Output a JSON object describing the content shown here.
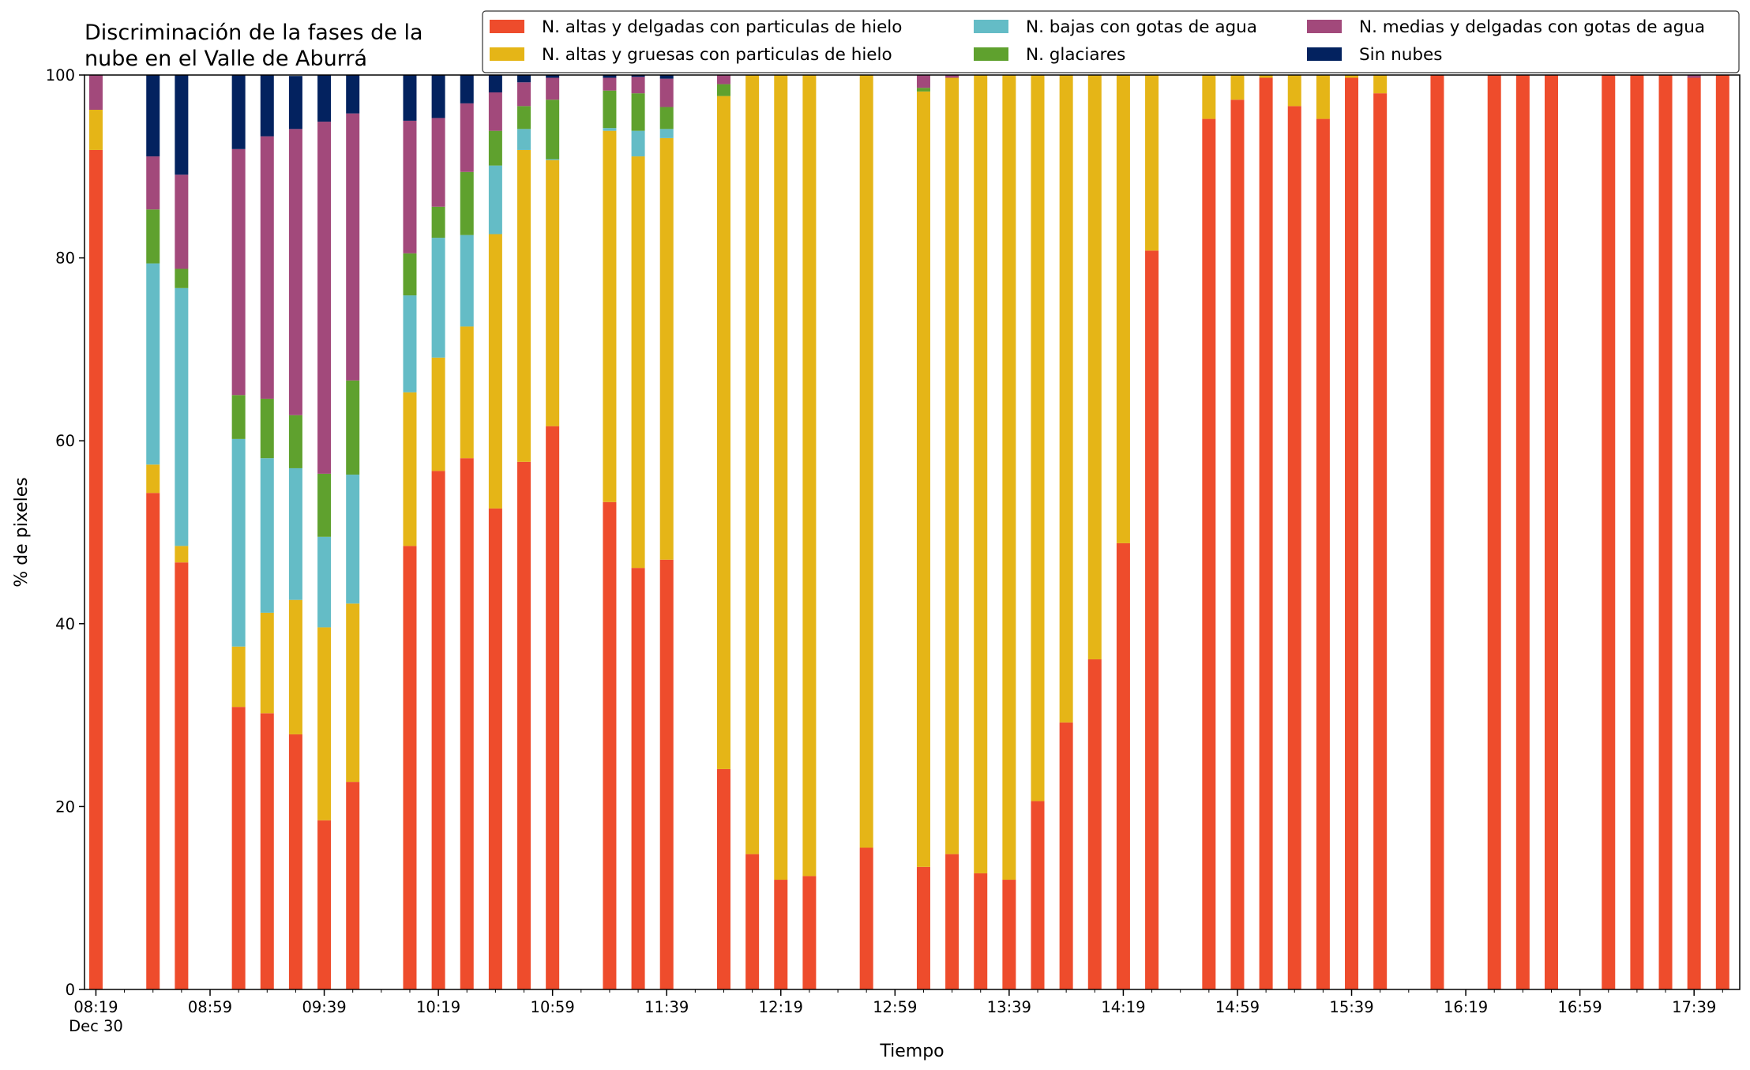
{
  "chart_data": {
    "type": "bar",
    "stacked": true,
    "title_lines": [
      "Discriminación de la fases de la",
      "nube en el Valle de Aburrá"
    ],
    "xlabel": "Tiempo",
    "ylabel": "% de pixeles",
    "ylim": [
      0,
      100
    ],
    "yticks": [
      0,
      20,
      40,
      60,
      80,
      100
    ],
    "xlim": [
      "08:15",
      "17:55"
    ],
    "xticks": [
      {
        "time": "08:19",
        "label": "08:19",
        "sublabel": "Dec 30"
      },
      {
        "time": "08:59",
        "label": "08:59"
      },
      {
        "time": "09:39",
        "label": "09:39"
      },
      {
        "time": "10:19",
        "label": "10:19"
      },
      {
        "time": "10:59",
        "label": "10:59"
      },
      {
        "time": "11:39",
        "label": "11:39"
      },
      {
        "time": "12:19",
        "label": "12:19"
      },
      {
        "time": "12:59",
        "label": "12:59"
      },
      {
        "time": "13:39",
        "label": "13:39"
      },
      {
        "time": "14:19",
        "label": "14:19"
      },
      {
        "time": "14:59",
        "label": "14:59"
      },
      {
        "time": "15:39",
        "label": "15:39"
      },
      {
        "time": "16:19",
        "label": "16:19"
      },
      {
        "time": "16:59",
        "label": "16:59"
      },
      {
        "time": "17:39",
        "label": "17:39"
      }
    ],
    "grid": false,
    "legend_position": "top-right",
    "legend_columns": 3,
    "x": [
      "08:19",
      "08:39",
      "08:49",
      "09:09",
      "09:19",
      "09:29",
      "09:39",
      "09:49",
      "10:09",
      "10:19",
      "10:29",
      "10:39",
      "10:49",
      "10:59",
      "11:19",
      "11:29",
      "11:39",
      "11:59",
      "12:09",
      "12:19",
      "12:29",
      "12:49",
      "13:09",
      "13:19",
      "13:29",
      "13:39",
      "13:49",
      "13:59",
      "14:09",
      "14:19",
      "14:29",
      "14:49",
      "14:59",
      "15:09",
      "15:19",
      "15:29",
      "15:39",
      "15:49",
      "16:09",
      "16:29",
      "16:39",
      "16:49",
      "17:09",
      "17:19",
      "17:29",
      "17:39",
      "17:49"
    ],
    "series": [
      {
        "name": "N. altas y delgadas con particulas de hielo",
        "color": "#ee4c2c",
        "values": [
          91.8,
          54.3,
          46.7,
          30.9,
          30.2,
          27.9,
          18.5,
          22.7,
          48.5,
          56.7,
          58.1,
          52.6,
          57.7,
          61.6,
          53.3,
          46.1,
          47.0,
          24.1,
          14.8,
          12.0,
          12.4,
          15.5,
          13.4,
          14.8,
          12.7,
          12.0,
          20.6,
          29.2,
          36.1,
          48.8,
          80.8,
          95.2,
          97.3,
          99.7,
          96.6,
          95.2,
          99.7,
          98.0,
          100.0,
          100.0,
          100.0,
          100.0,
          100.0,
          100.0,
          100.0,
          99.7,
          100.0
        ]
      },
      {
        "name": "N. altas y gruesas con particulas de hielo",
        "color": "#e5b517",
        "values": [
          4.4,
          3.1,
          1.8,
          6.6,
          11.0,
          14.7,
          21.1,
          19.5,
          16.8,
          12.4,
          14.4,
          30.0,
          34.1,
          29.1,
          40.6,
          45.0,
          46.1,
          73.6,
          85.2,
          88.0,
          87.6,
          84.5,
          84.8,
          84.9,
          87.3,
          88.0,
          79.4,
          70.8,
          63.9,
          51.2,
          19.2,
          4.8,
          2.7,
          0.3,
          3.4,
          4.8,
          0.3,
          2.0,
          0.0,
          0.0,
          0.0,
          0.0,
          0.0,
          0.0,
          0.0,
          0.0,
          0.0
        ]
      },
      {
        "name": "N. bajas con gotas de agua",
        "color": "#64bcc6",
        "values": [
          0.0,
          22.0,
          28.2,
          22.7,
          16.9,
          14.4,
          9.9,
          14.1,
          10.6,
          13.1,
          10.0,
          7.5,
          2.3,
          0.1,
          0.3,
          2.8,
          1.0,
          0.0,
          0.0,
          0.0,
          0.0,
          0.0,
          0.0,
          0.0,
          0.0,
          0.0,
          0.0,
          0.0,
          0.0,
          0.0,
          0.0,
          0.0,
          0.0,
          0.0,
          0.0,
          0.0,
          0.0,
          0.0,
          0.0,
          0.0,
          0.0,
          0.0,
          0.0,
          0.0,
          0.0,
          0.0,
          0.0
        ]
      },
      {
        "name": "N. glaciares",
        "color": "#5fa12e",
        "values": [
          0.0,
          5.9,
          2.1,
          4.8,
          6.5,
          5.8,
          6.9,
          10.3,
          4.6,
          3.4,
          6.9,
          3.8,
          2.5,
          6.5,
          4.1,
          4.1,
          2.4,
          1.3,
          0.0,
          0.0,
          0.0,
          0.0,
          0.4,
          0.0,
          0.0,
          0.0,
          0.0,
          0.0,
          0.0,
          0.0,
          0.0,
          0.0,
          0.0,
          0.0,
          0.0,
          0.0,
          0.0,
          0.0,
          0.0,
          0.0,
          0.0,
          0.0,
          0.0,
          0.0,
          0.0,
          0.0,
          0.0
        ]
      },
      {
        "name": "N. medias y delgadas con gotas de agua",
        "color": "#a2497b",
        "values": [
          3.8,
          5.8,
          10.3,
          26.9,
          28.7,
          31.3,
          38.5,
          29.2,
          14.5,
          9.7,
          7.5,
          4.2,
          2.6,
          2.4,
          1.4,
          1.8,
          3.1,
          1.0,
          0.0,
          0.0,
          0.0,
          0.0,
          1.4,
          0.3,
          0.0,
          0.0,
          0.0,
          0.0,
          0.0,
          0.0,
          0.0,
          0.0,
          0.0,
          0.0,
          0.0,
          0.0,
          0.0,
          0.0,
          0.0,
          0.0,
          0.0,
          0.0,
          0.0,
          0.0,
          0.0,
          0.3,
          0.0
        ]
      },
      {
        "name": "Sin nubes",
        "color": "#03225f",
        "values": [
          0.0,
          8.9,
          10.9,
          8.1,
          6.7,
          5.8,
          5.1,
          4.2,
          5.0,
          4.7,
          3.1,
          1.9,
          0.8,
          0.3,
          0.3,
          0.2,
          0.4,
          0.0,
          0.0,
          0.0,
          0.0,
          0.0,
          0.0,
          0.0,
          0.0,
          0.0,
          0.0,
          0.0,
          0.0,
          0.0,
          0.0,
          0.0,
          0.0,
          0.0,
          0.0,
          0.0,
          0.0,
          0.0,
          0.0,
          0.0,
          0.0,
          0.0,
          0.0,
          0.0,
          0.0,
          0.0,
          0.0
        ]
      }
    ]
  }
}
